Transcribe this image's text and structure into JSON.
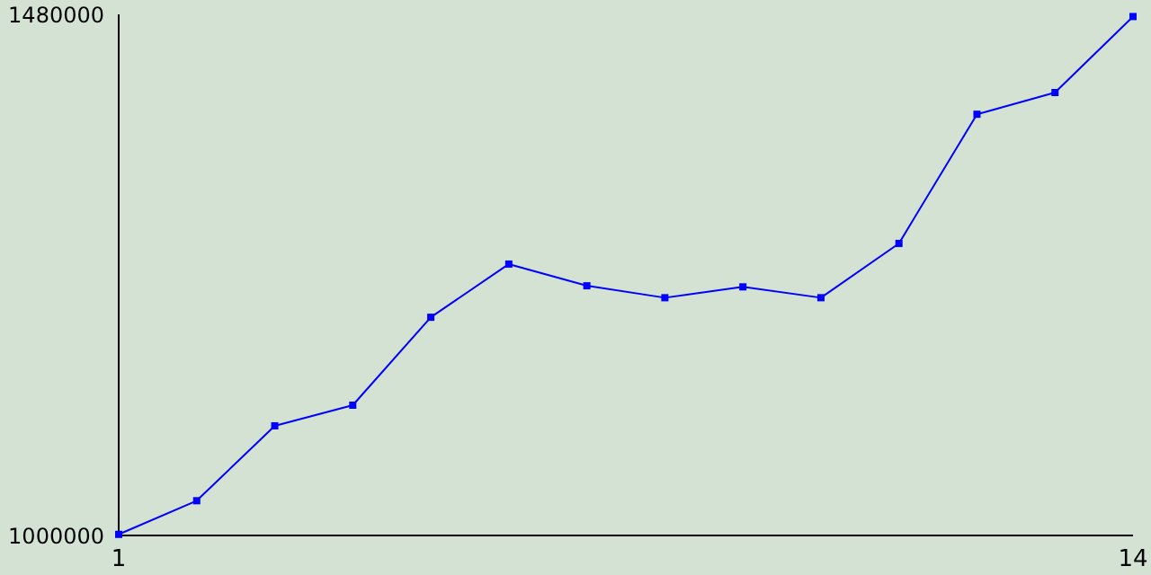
{
  "chart_data": {
    "type": "line",
    "x": [
      1,
      2,
      3,
      4,
      5,
      6,
      7,
      8,
      9,
      10,
      11,
      12,
      13,
      14
    ],
    "series": [
      {
        "color": "#0000ff",
        "values": [
          1001000,
          1032000,
          1101000,
          1120000,
          1201000,
          1250000,
          1230000,
          1219000,
          1229000,
          1219000,
          1269000,
          1388000,
          1408000,
          1478000
        ]
      }
    ],
    "xlim": [
      1,
      14
    ],
    "xticks": [
      1,
      14
    ],
    "ylim": [
      1000000,
      1480000
    ],
    "yticks": [
      1000000,
      1480000
    ],
    "grid": false,
    "legend": false,
    "marker": "square",
    "line_style": "solid"
  }
}
